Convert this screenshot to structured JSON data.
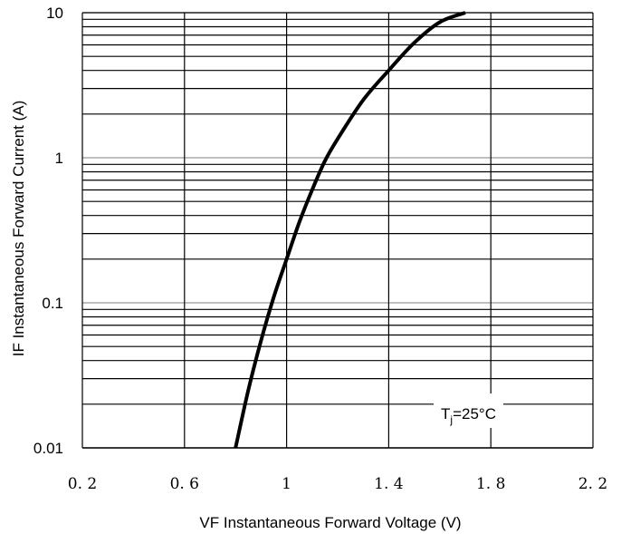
{
  "chart_data": {
    "type": "line",
    "title": "",
    "xlabel": "VF  Instantaneous Forward Voltage (V)",
    "ylabel": "IF Instantaneous Forward Current (A)",
    "x_scale": "linear",
    "y_scale": "log",
    "xlim": [
      0.2,
      2.2
    ],
    "ylim": [
      0.01,
      10
    ],
    "x_ticks": [
      0.2,
      0.6,
      1.0,
      1.4,
      1.8,
      2.2
    ],
    "x_tick_labels": [
      "0. 2",
      "0. 6",
      "1",
      "1. 4",
      "1. 8",
      "2. 2"
    ],
    "y_ticks": [
      0.01,
      0.1,
      1,
      10
    ],
    "y_tick_labels": [
      "0.01",
      "0.1",
      "1",
      "10"
    ],
    "grid": true,
    "series": [
      {
        "x": [
          0.8,
          0.85,
          0.9,
          0.95,
          1.0,
          1.05,
          1.1,
          1.15,
          1.2,
          1.3,
          1.4,
          1.5,
          1.6,
          1.7
        ],
        "y": [
          0.01,
          0.025,
          0.055,
          0.11,
          0.2,
          0.36,
          0.6,
          0.95,
          1.35,
          2.5,
          4.0,
          6.2,
          8.6,
          10.0
        ]
      }
    ],
    "annotation": {
      "prefix": "T",
      "subscript": "j",
      "suffix": "=25°C"
    },
    "colors": {
      "line": "#000000",
      "grid": "#000000",
      "grid_decade": "#999999",
      "background": "#ffffff"
    }
  }
}
